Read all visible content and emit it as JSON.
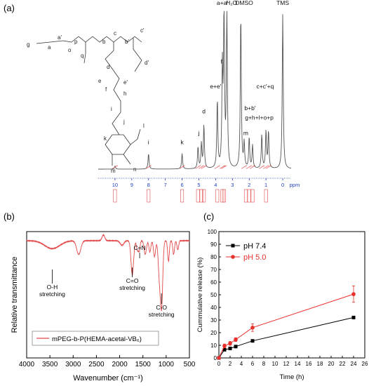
{
  "panels": {
    "a": "(a)",
    "b": "(b)",
    "c": "(c)"
  },
  "chart_data": [
    {
      "id": "nmr",
      "type": "line",
      "title": "",
      "xlabel": "ppm",
      "ylabel": "",
      "xlim": [
        11,
        -0.5
      ],
      "x_reversed": true,
      "xticks": [
        10,
        9,
        8,
        7,
        6,
        5,
        4,
        3,
        2,
        1,
        0
      ],
      "line_color": "#555555",
      "integral_color": "#e24a4a",
      "tick_color": "#1f3fbf",
      "peaks": [
        {
          "ppm": 10.0,
          "height": 0.02
        },
        {
          "ppm": 8.0,
          "height": 0.1
        },
        {
          "ppm": 6.0,
          "height": 0.1
        },
        {
          "ppm": 5.05,
          "height": 0.14
        },
        {
          "ppm": 4.85,
          "height": 0.16
        },
        {
          "ppm": 4.7,
          "height": 0.28
        },
        {
          "ppm": 3.9,
          "height": 0.44
        },
        {
          "ppm": 3.6,
          "height": 0.62
        },
        {
          "ppm": 3.5,
          "height": 1.0
        },
        {
          "ppm": 3.33,
          "height": 1.0
        },
        {
          "ppm": 2.5,
          "height": 1.0
        },
        {
          "ppm": 2.3,
          "height": 0.16
        },
        {
          "ppm": 2.0,
          "height": 0.2
        },
        {
          "ppm": 1.8,
          "height": 0.15
        },
        {
          "ppm": 1.25,
          "height": 0.22
        },
        {
          "ppm": 1.0,
          "height": 0.24
        },
        {
          "ppm": 0.85,
          "height": 0.24
        },
        {
          "ppm": 0.0,
          "height": 1.0
        }
      ],
      "peak_labels": [
        {
          "ppm": 8.0,
          "level": 0.16,
          "text": "i"
        },
        {
          "ppm": 6.0,
          "level": 0.16,
          "text": "k"
        },
        {
          "ppm": 5.0,
          "level": 0.22,
          "text": "j"
        },
        {
          "ppm": 4.7,
          "level": 0.36,
          "text": "d"
        },
        {
          "ppm": 4.0,
          "level": 0.52,
          "text": "e+e'"
        },
        {
          "ppm": 3.65,
          "level": 0.68,
          "text": "f"
        },
        {
          "ppm": 3.6,
          "level": 1.06,
          "text": "a+a'"
        },
        {
          "ppm": 3.05,
          "level": 1.06,
          "text": "H₂O"
        },
        {
          "ppm": 2.3,
          "level": 1.06,
          "text": "DMSO"
        },
        {
          "ppm": 2.2,
          "level": 0.22,
          "text": "m"
        },
        {
          "ppm": 1.95,
          "level": 0.38,
          "text": "b+b'"
        },
        {
          "ppm": 1.4,
          "level": 0.32,
          "text": "g+h+l+o+p"
        },
        {
          "ppm": 1.05,
          "level": 0.52,
          "text": "c+c'+q"
        },
        {
          "ppm": 0.0,
          "level": 1.06,
          "text": "TMS"
        }
      ],
      "structure_labels": [
        "g",
        "a",
        "a'",
        "p",
        "o",
        "q",
        "b",
        "c",
        "b'",
        "c'",
        "d",
        "d'",
        "e",
        "e'",
        "f",
        "h",
        "i",
        "j",
        "k",
        "l",
        "m",
        "n"
      ]
    },
    {
      "id": "ftir",
      "type": "line",
      "title": "",
      "xlabel": "Wavenumber (cm⁻¹)",
      "ylabel": "Relative transmittance",
      "xlim": [
        4000,
        500
      ],
      "x_reversed": true,
      "xticks": [
        4000,
        3500,
        3000,
        2500,
        2000,
        1500,
        1000,
        500
      ],
      "line_color": "#e24a4a",
      "baseline": 0.92,
      "bands": [
        {
          "x": 3450,
          "depth": 0.07,
          "width": 160
        },
        {
          "x": 2880,
          "depth": 0.12,
          "width": 45
        },
        {
          "x": 2350,
          "depth": -0.05,
          "width": 30
        },
        {
          "x": 1950,
          "depth": 0.04,
          "width": 40
        },
        {
          "x": 1728,
          "depth": 0.3,
          "width": 28
        },
        {
          "x": 1620,
          "depth": 0.08,
          "width": 18
        },
        {
          "x": 1580,
          "depth": 0.09,
          "width": 18
        },
        {
          "x": 1450,
          "depth": 0.12,
          "width": 25
        },
        {
          "x": 1350,
          "depth": 0.1,
          "width": 20
        },
        {
          "x": 1250,
          "depth": 0.14,
          "width": 22
        },
        {
          "x": 1150,
          "depth": 0.26,
          "width": 24
        },
        {
          "x": 1100,
          "depth": 0.58,
          "width": 26
        },
        {
          "x": 950,
          "depth": 0.18,
          "width": 18
        },
        {
          "x": 840,
          "depth": 0.12,
          "width": 18
        },
        {
          "x": 750,
          "depth": 0.08,
          "width": 18
        }
      ],
      "annotations": [
        {
          "x": 3450,
          "text": [
            "O-H",
            "stretching"
          ]
        },
        {
          "x": 1728,
          "text": [
            "C=O",
            "stretching"
          ]
        },
        {
          "x": 1570,
          "text": [
            "C=N"
          ]
        },
        {
          "x": 1100,
          "text": [
            "C-O",
            "stretching"
          ]
        }
      ],
      "legend": "mPEG-b-P(HEMA-acetal-VB₆)",
      "legend_position": "bottom-left"
    },
    {
      "id": "release",
      "type": "line",
      "title": "",
      "xlabel": "Time (h)",
      "ylabel": "Cummulative release (%)",
      "xlim": [
        0,
        26
      ],
      "ylim": [
        0,
        100
      ],
      "xticks": [
        0,
        2,
        4,
        6,
        8,
        10,
        12,
        14,
        16,
        18,
        20,
        22,
        24,
        26
      ],
      "yticks": [
        0,
        10,
        20,
        30,
        40,
        50,
        60,
        70,
        80,
        90,
        100
      ],
      "legend_position": "top-left",
      "series": [
        {
          "name": "pH 7.4",
          "color": "#000000",
          "marker": "square",
          "x": [
            0,
            1,
            2,
            3,
            6,
            24
          ],
          "y": [
            0,
            6.5,
            7.5,
            9,
            13.5,
            32
          ],
          "err": [
            0,
            1,
            1,
            1,
            1,
            1
          ]
        },
        {
          "name": "pH 5.0",
          "color": "#e8302c",
          "marker": "circle",
          "x": [
            0,
            1,
            2,
            3,
            6,
            24
          ],
          "y": [
            0,
            9.5,
            11.5,
            14.5,
            24,
            50.5
          ],
          "err": [
            0,
            1.5,
            1.5,
            1.5,
            3,
            6.5
          ]
        }
      ]
    }
  ]
}
